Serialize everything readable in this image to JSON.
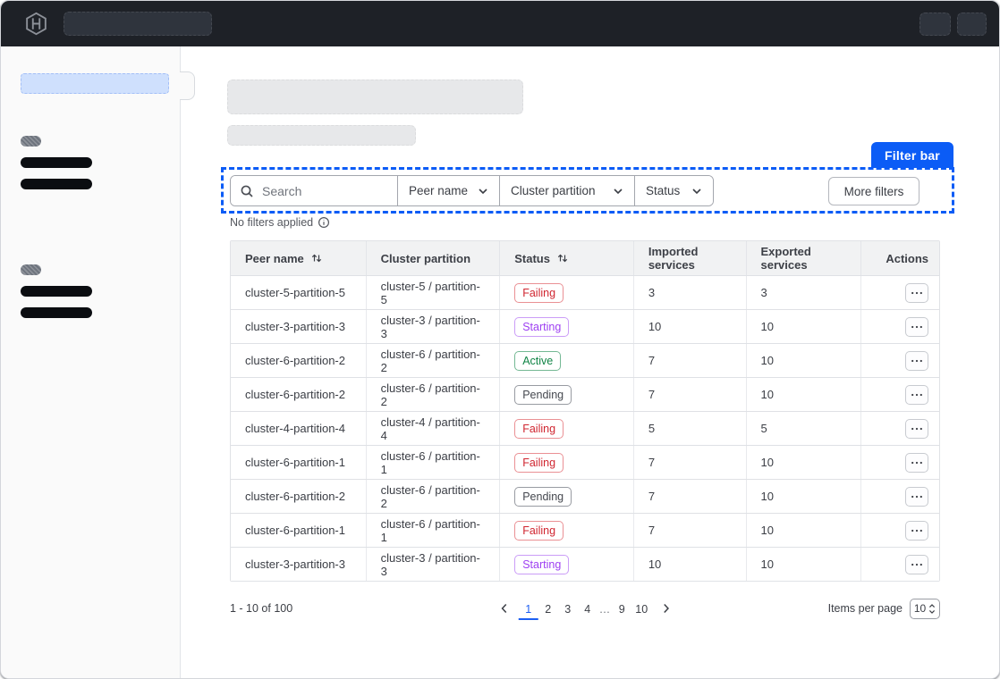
{
  "colors": {
    "annotation_blue": "#0b5cf6",
    "active_page_blue": "#1c5ff2",
    "status_failing": "#d02630",
    "status_starting": "#9e3ff2",
    "status_active": "#108445",
    "status_pending": "#45484f"
  },
  "topnav": {
    "logo": "hashicorp-logo"
  },
  "annotation": {
    "label": "Filter bar"
  },
  "filter_bar": {
    "search": {
      "placeholder": "Search"
    },
    "dropdowns": [
      {
        "label": "Peer name"
      },
      {
        "label": "Cluster partition"
      },
      {
        "label": "Status"
      }
    ],
    "more_filters_label": "More filters",
    "status_text": "No filters applied"
  },
  "table": {
    "columns": [
      {
        "label": "Peer name",
        "sortable": true
      },
      {
        "label": "Cluster partition",
        "sortable": false
      },
      {
        "label": "Status",
        "sortable": true
      },
      {
        "label": "Imported services",
        "sortable": false
      },
      {
        "label": "Exported services",
        "sortable": false
      },
      {
        "label": "Actions",
        "sortable": false
      }
    ],
    "rows": [
      {
        "peer_name": "cluster-5-partition-5",
        "cluster_partition": "cluster-5 / partition-5",
        "status": "Failing",
        "imported": "3",
        "exported": "3"
      },
      {
        "peer_name": "cluster-3-partition-3",
        "cluster_partition": "cluster-3 / partition-3",
        "status": "Starting",
        "imported": "10",
        "exported": "10"
      },
      {
        "peer_name": "cluster-6-partition-2",
        "cluster_partition": "cluster-6 / partition-2",
        "status": "Active",
        "imported": "7",
        "exported": "10"
      },
      {
        "peer_name": "cluster-6-partition-2",
        "cluster_partition": "cluster-6 / partition-2",
        "status": "Pending",
        "imported": "7",
        "exported": "10"
      },
      {
        "peer_name": "cluster-4-partition-4",
        "cluster_partition": "cluster-4 / partition-4",
        "status": "Failing",
        "imported": "5",
        "exported": "5"
      },
      {
        "peer_name": "cluster-6-partition-1",
        "cluster_partition": "cluster-6 / partition-1",
        "status": "Failing",
        "imported": "7",
        "exported": "10"
      },
      {
        "peer_name": "cluster-6-partition-2",
        "cluster_partition": "cluster-6 / partition-2",
        "status": "Pending",
        "imported": "7",
        "exported": "10"
      },
      {
        "peer_name": "cluster-6-partition-1",
        "cluster_partition": "cluster-6 / partition-1",
        "status": "Failing",
        "imported": "7",
        "exported": "10"
      },
      {
        "peer_name": "cluster-3-partition-3",
        "cluster_partition": "cluster-3 / partition-3",
        "status": "Starting",
        "imported": "10",
        "exported": "10"
      }
    ]
  },
  "pagination": {
    "summary": "1 - 10 of 100",
    "pages": [
      "1",
      "2",
      "3",
      "4",
      "…",
      "9",
      "10"
    ],
    "active_page": "1",
    "items_per_page_label": "Items per page",
    "items_per_page_value": "10"
  }
}
